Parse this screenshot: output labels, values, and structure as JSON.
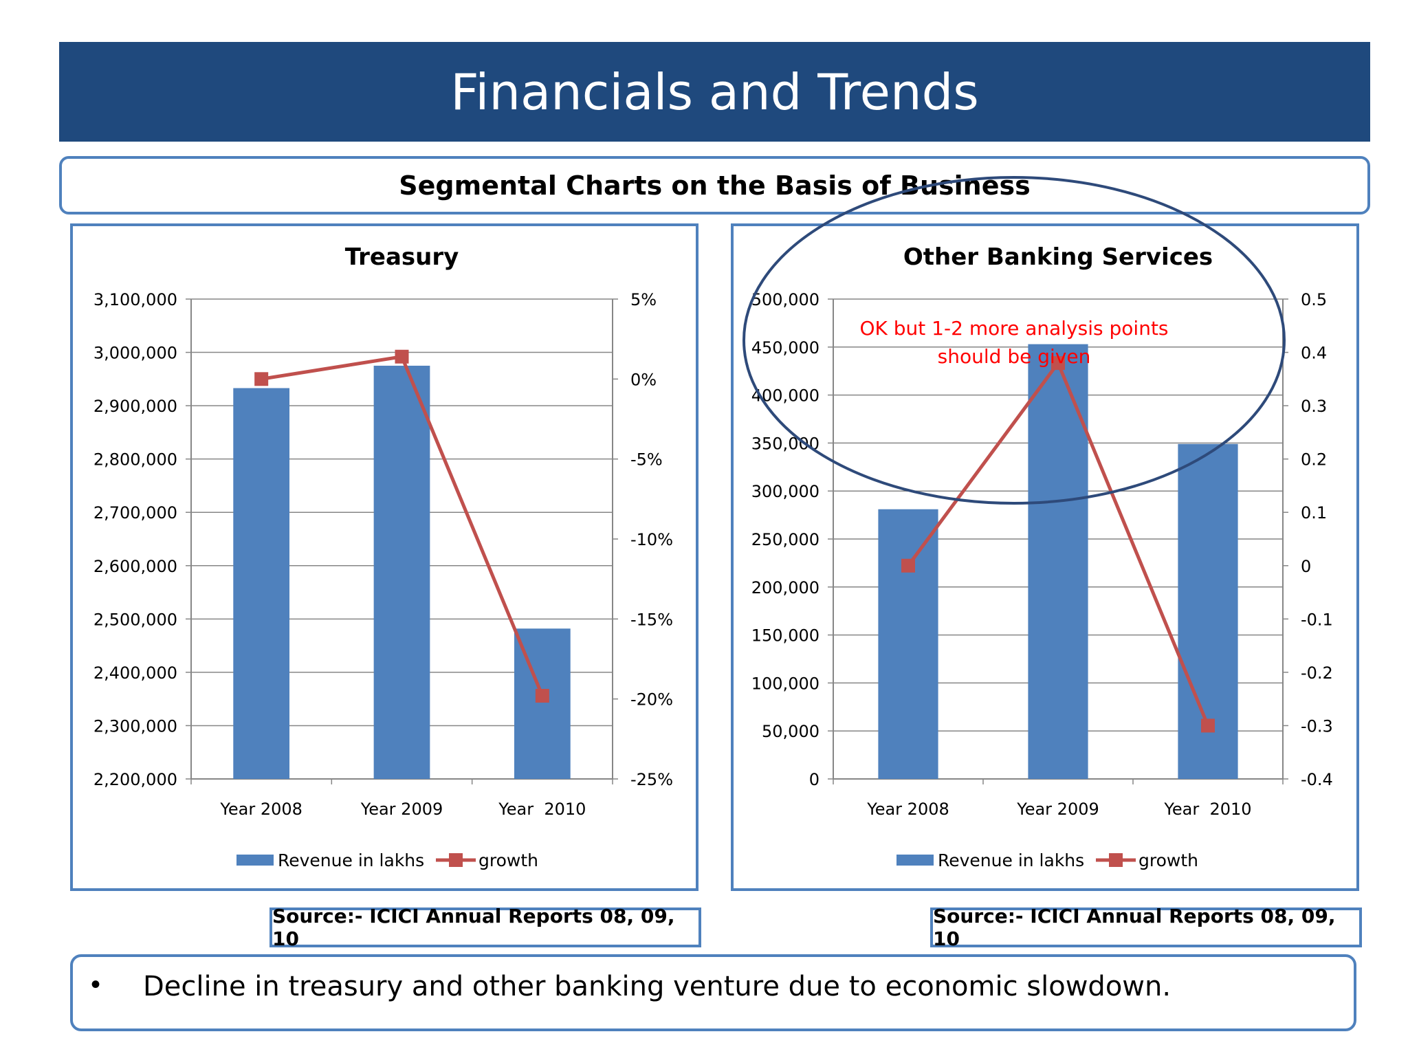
{
  "header": {
    "title": "Financials and Trends"
  },
  "subtitle": "Segmental Charts on the Basis of Business",
  "colors": {
    "banner": "#1f497d",
    "border": "#4f81bd",
    "bar": "#4f81bd",
    "line": "#c0504d",
    "annotation": "#ff0000",
    "ellipse": "#2e4a7a"
  },
  "chart_data": [
    {
      "type": "bar",
      "title": "Treasury",
      "categories": [
        "Year 2008",
        "Year 2009",
        "Year  2010"
      ],
      "series": [
        {
          "name": "Revenue in lakhs",
          "type": "bar",
          "axis": "left",
          "values": [
            2933000,
            2975000,
            2482000
          ]
        },
        {
          "name": "growth",
          "type": "line",
          "axis": "right",
          "values": [
            0.0,
            0.014,
            -0.198
          ]
        }
      ],
      "ylim": [
        2200000,
        3100000
      ],
      "y_ticks": [
        "3,100,000",
        "3,000,000",
        "2,900,000",
        "2,800,000",
        "2,700,000",
        "2,600,000",
        "2,500,000",
        "2,400,000",
        "2,300,000",
        "2,200,000"
      ],
      "y2lim": [
        -0.25,
        0.05
      ],
      "y2_ticks": [
        "5%",
        "0%",
        "-5%",
        "-10%",
        "-15%",
        "-20%",
        "-25%"
      ],
      "grid": true,
      "legend": "bottom"
    },
    {
      "type": "bar",
      "title": "Other Banking Services",
      "categories": [
        "Year 2008",
        "Year 2009",
        "Year  2010"
      ],
      "series": [
        {
          "name": "Revenue in lakhs",
          "type": "bar",
          "axis": "left",
          "values": [
            281000,
            453000,
            349000
          ]
        },
        {
          "name": "growth",
          "type": "line",
          "axis": "right",
          "values": [
            0.0,
            0.38,
            -0.3
          ]
        }
      ],
      "ylim": [
        0,
        500000
      ],
      "y_ticks": [
        "500,000",
        "450,000",
        "400,000",
        "350,000",
        "300,000",
        "250,000",
        "200,000",
        "150,000",
        "100,000",
        "50,000",
        "0"
      ],
      "y2lim": [
        -0.4,
        0.5
      ],
      "y2_ticks": [
        "0.5",
        "0.4",
        "0.3",
        "0.2",
        "0.1",
        "0",
        "-0.1",
        "-0.2",
        "-0.3",
        "-0.4"
      ],
      "grid": true,
      "legend": "bottom"
    }
  ],
  "annotation": {
    "line1": "OK but 1-2 more analysis points",
    "line2": "should be given"
  },
  "sources": {
    "left": "Source:- ICICI Annual Reports 08, 09, 10",
    "right": "Source:- ICICI Annual Reports 08, 09, 10"
  },
  "bullet": {
    "text": "Decline in treasury and other banking venture due to economic slowdown."
  }
}
